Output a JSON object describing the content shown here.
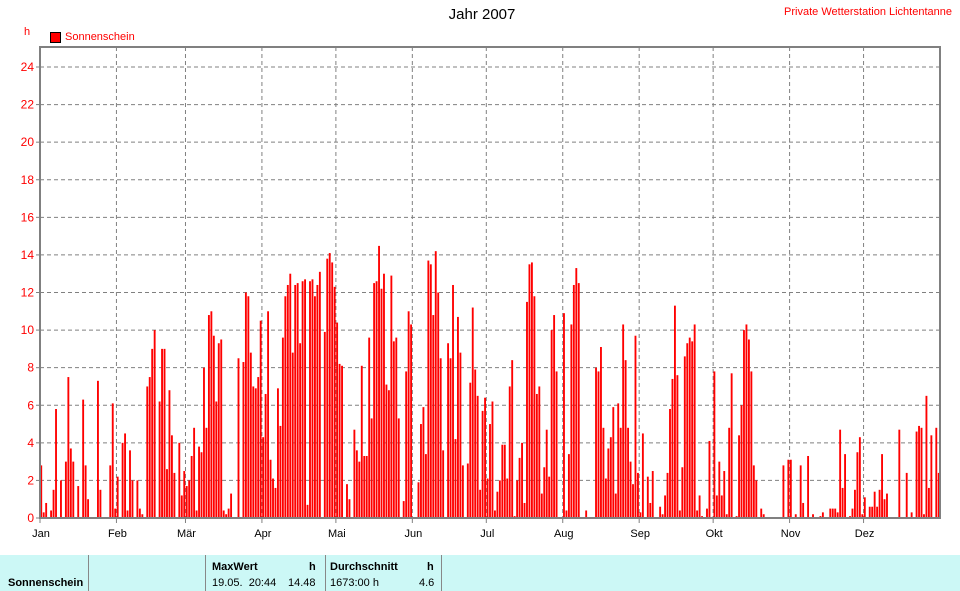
{
  "header": {
    "title": "Jahr 2007",
    "station": "Private Wetterstation Lichtentanne",
    "unit": "h"
  },
  "chart_data": {
    "type": "bar",
    "title": "Jahr 2007",
    "ylabel": "h",
    "ylim": [
      0,
      24
    ],
    "yticks": [
      0,
      2,
      4,
      6,
      8,
      10,
      12,
      14,
      16,
      18,
      20,
      22,
      24
    ],
    "grid": true,
    "legend_placement": "top-left",
    "series_color": "#ff0000",
    "months": [
      "Jan",
      "Feb",
      "Mär",
      "Apr",
      "Mai",
      "Jun",
      "Jul",
      "Aug",
      "Sep",
      "Okt",
      "Nov",
      "Dez"
    ],
    "month_days": [
      31,
      28,
      31,
      30,
      31,
      30,
      31,
      31,
      30,
      31,
      30,
      31
    ],
    "series": [
      {
        "name": "Sonnenschein",
        "values": [
          2.8,
          0.3,
          0.8,
          0,
          0.4,
          1.5,
          5.8,
          0,
          2,
          0,
          3,
          7.5,
          3.7,
          3,
          0,
          1.7,
          0,
          6.3,
          2.8,
          1,
          0,
          0,
          0,
          7.3,
          1.5,
          0,
          0,
          0,
          2.8,
          6.1,
          0.5,
          2.2,
          0,
          4,
          4.5,
          0.4,
          3.6,
          2,
          0,
          2,
          0.5,
          0.2,
          0,
          7,
          7.5,
          9,
          10,
          0,
          6.2,
          9,
          9,
          2.6,
          6.8,
          4.4,
          2.4,
          0,
          4,
          1.2,
          2.5,
          1.7,
          2,
          3.3,
          4.8,
          0.4,
          3.8,
          3.5,
          8,
          4.8,
          10.8,
          11,
          9.7,
          6.2,
          9.3,
          9.5,
          0.4,
          0.2,
          0.5,
          1.3,
          0,
          0,
          8.5,
          0,
          8.3,
          12,
          11.8,
          8.8,
          7,
          6.9,
          7.5,
          10.5,
          4.3,
          6.6,
          11,
          3.1,
          2.1,
          1.6,
          6.9,
          4.9,
          9.6,
          11.8,
          12.4,
          13,
          8.8,
          12.4,
          12.5,
          9.3,
          12.6,
          12.7,
          0.7,
          12.6,
          12.7,
          11.8,
          12.4,
          13.1,
          0,
          9.9,
          13.8,
          14.1,
          13.6,
          12.3,
          10.4,
          8.2,
          8.1,
          0,
          1.8,
          1,
          0,
          4.7,
          3.6,
          3,
          8.1,
          3.3,
          3.3,
          9.6,
          5.3,
          12.5,
          12.6,
          14.48,
          12.2,
          13,
          7.1,
          6.8,
          12.9,
          9.4,
          9.6,
          5.3,
          0,
          0.9,
          7.8,
          11,
          10.3,
          0,
          0,
          1.9,
          5,
          5.9,
          3.4,
          13.7,
          13.5,
          10.8,
          14.2,
          12,
          8.5,
          3.6,
          0,
          9.3,
          8.5,
          12.4,
          4.2,
          10.7,
          8.8,
          2.8,
          0,
          2.9,
          7.2,
          11.2,
          7.9,
          6.5,
          1.5,
          5.7,
          6.4,
          2.1,
          5,
          6.2,
          0.4,
          1.4,
          2,
          3.9,
          3.9,
          2.1,
          7,
          8.4,
          0.1,
          2,
          3.2,
          4,
          0.8,
          11.5,
          13.5,
          13.6,
          11.8,
          6.6,
          7,
          1.3,
          2.7,
          4.7,
          2.2,
          10,
          10.8,
          7.8,
          0,
          0,
          10.9,
          0.4,
          3.4,
          10.3,
          12.4,
          13.3,
          12.5,
          0,
          0,
          0.4,
          0,
          0,
          0,
          8,
          7.8,
          9.1,
          4.8,
          2.1,
          3.7,
          4.3,
          5.9,
          1.3,
          6.1,
          4.8,
          10.3,
          8.4,
          4.8,
          3,
          1.8,
          9.7,
          2.4,
          0.3,
          4.5,
          0,
          2.2,
          0.8,
          2.5,
          0,
          0,
          0.6,
          0.2,
          1.2,
          2.4,
          5.8,
          7.4,
          11.3,
          7.6,
          0.4,
          2.7,
          8.6,
          9.3,
          9.6,
          9.4,
          10.3,
          0.4,
          1.2,
          0.1,
          0,
          0.5,
          4.1,
          0,
          7.8,
          1.2,
          3,
          1.2,
          2.5,
          0.2,
          4.8,
          7.7,
          0,
          0.1,
          4.4,
          6,
          10,
          10.3,
          9.5,
          7.8,
          2.8,
          2,
          0,
          0.5,
          0.2,
          0,
          0,
          0,
          0,
          0,
          0,
          0,
          2.8,
          0,
          3.1,
          3.1,
          0,
          0.2,
          0,
          2.8,
          0.8,
          0,
          3.3,
          0,
          0.2,
          0,
          0,
          0.1,
          0.3,
          0,
          0,
          0.5,
          0.5,
          0.5,
          0.3,
          4.7,
          1.6,
          3.4,
          0,
          0.1,
          0.5,
          1.5,
          3.5,
          4.3,
          0.2,
          1.1,
          0,
          0.6,
          0.6,
          1.4,
          0.6,
          1.5,
          3.4,
          1.0,
          1.3,
          0,
          0,
          0,
          0,
          4.7,
          0,
          0,
          2.4,
          0,
          0.3,
          0,
          4.6,
          4.9,
          4.8,
          0.2,
          6.5,
          1.6,
          4.4,
          0,
          4.8,
          2.4
        ]
      }
    ]
  },
  "footer": {
    "row_label": "Sonnenschein",
    "max_header": "MaxWert",
    "max_unit": "h",
    "max_date": "19.05.  20:44",
    "max_value": "14.48",
    "avg_header": "Durchschnitt",
    "avg_unit": "h",
    "avg_total": "1673:00 h",
    "avg_value": "4.6"
  }
}
